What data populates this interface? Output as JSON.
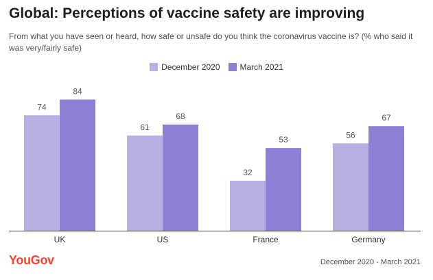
{
  "title": "Global: Perceptions of vaccine safety are improving",
  "subtitle": "From what you have seen or heard, how safe or unsafe do you think the coronavirus vaccine is? (% who said it was very/fairly safe)",
  "footer": {
    "logo": "YouGov",
    "date_range": "December 2020 - March 2021"
  },
  "colors": {
    "series_1": "#b8b0e3",
    "series_2": "#8b7fd6",
    "brand": "#ff412c"
  },
  "chart_data": {
    "type": "bar",
    "title": "Global: Perceptions of vaccine safety are improving",
    "subtitle": "From what you have seen or heard, how safe or unsafe do you think the coronavirus vaccine is? (% who said it was very/fairly safe)",
    "categories": [
      "UK",
      "US",
      "France",
      "Germany"
    ],
    "series": [
      {
        "name": "December 2020",
        "values": [
          74,
          61,
          32,
          56
        ]
      },
      {
        "name": "March 2021",
        "values": [
          84,
          68,
          53,
          67
        ]
      }
    ],
    "xlabel": "",
    "ylabel": "",
    "ylim": [
      0,
      100
    ],
    "grid": false,
    "legend_position": "top-center",
    "data_labels": true
  }
}
